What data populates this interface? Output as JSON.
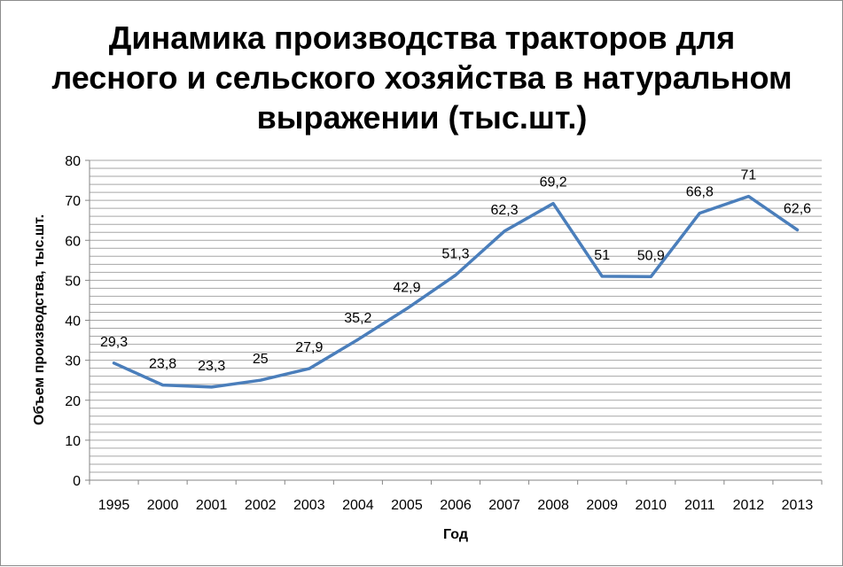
{
  "chart_data": {
    "type": "line",
    "title_lines": [
      "Динамика производства тракторов для",
      "лесного и сельского хозяйства в натуральном",
      "выражении (тыс.шт.)"
    ],
    "xlabel": "Год",
    "ylabel": "Объем производства, тыс.шт.",
    "categories": [
      "1995",
      "2000",
      "2001",
      "2002",
      "2003",
      "2004",
      "2005",
      "2006",
      "2007",
      "2008",
      "2009",
      "2010",
      "2011",
      "2012",
      "2013"
    ],
    "values": [
      29.3,
      23.8,
      23.3,
      25,
      27.9,
      35.2,
      42.9,
      51.3,
      62.3,
      69.2,
      51,
      50.9,
      66.8,
      71,
      62.6
    ],
    "data_labels": [
      "29,3",
      "23,8",
      "23,3",
      "25",
      "27,9",
      "35,2",
      "42,9",
      "51,3",
      "62,3",
      "69,2",
      "51",
      "50,9",
      "66,8",
      "71",
      "62,6"
    ],
    "ylim": [
      0,
      80
    ],
    "yticks": [
      0,
      10,
      20,
      30,
      40,
      50,
      60,
      70,
      80
    ],
    "minor_grid_step": 2,
    "grid": true,
    "legend": "none",
    "line_color": "#4a7ebb"
  }
}
